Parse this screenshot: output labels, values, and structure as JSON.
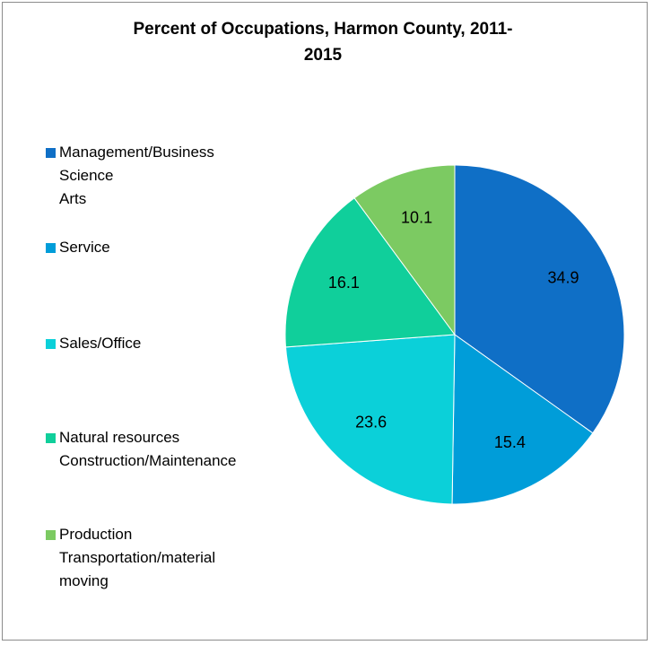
{
  "chart_data": {
    "type": "pie",
    "title": "Percent of Occupations, Harmon County, 2011-2015",
    "categories": [
      "Management/Business\nScience\nArts",
      "Service",
      "Sales/Office",
      "Natural resources\nConstruction/Maintenance",
      "Production\nTransportation/material\nmoving"
    ],
    "values": [
      34.9,
      15.4,
      23.6,
      16.1,
      10.1
    ],
    "colors": [
      "#0f6fc6",
      "#009dd9",
      "#0bd0d9",
      "#10cf9b",
      "#7cca62"
    ],
    "legend": "left"
  }
}
